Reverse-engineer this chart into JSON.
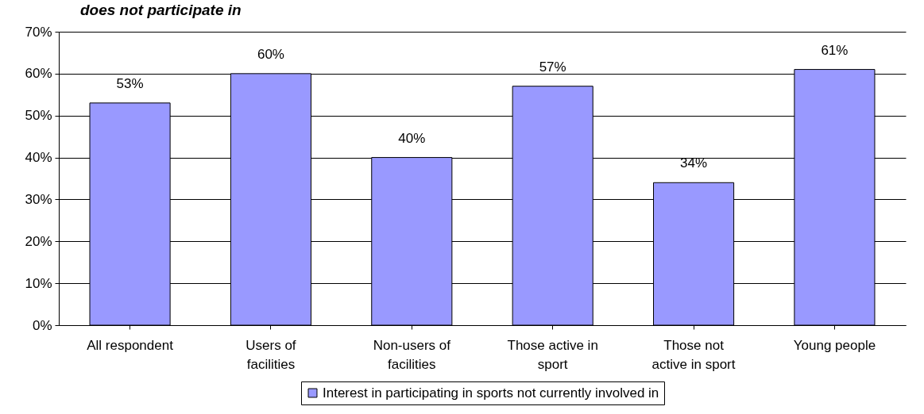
{
  "chart_data": {
    "type": "bar",
    "title": "does not participate in",
    "categories": [
      "All respondent",
      "Users of facilities",
      "Non-users of facilities",
      "Those active in sport",
      "Those not active in sport",
      "Young people"
    ],
    "series": [
      {
        "name": "Interest in participating in sports not currently involved in",
        "color": "#9999ff",
        "values": [
          53,
          60,
          40,
          57,
          34,
          61
        ],
        "value_labels": [
          "53%",
          "60%",
          "40%",
          "57%",
          "34%",
          "61%"
        ]
      }
    ],
    "ylim": [
      0,
      70
    ],
    "yticks": [
      {
        "value": 0,
        "label": "0%"
      },
      {
        "value": 10,
        "label": "10%"
      },
      {
        "value": 20,
        "label": "20%"
      },
      {
        "value": 30,
        "label": "30%"
      },
      {
        "value": 40,
        "label": "40%"
      },
      {
        "value": 50,
        "label": "50%"
      },
      {
        "value": 60,
        "label": "60%"
      },
      {
        "value": 70,
        "label": "70%"
      }
    ],
    "grid": "y",
    "legend": "bottom"
  }
}
